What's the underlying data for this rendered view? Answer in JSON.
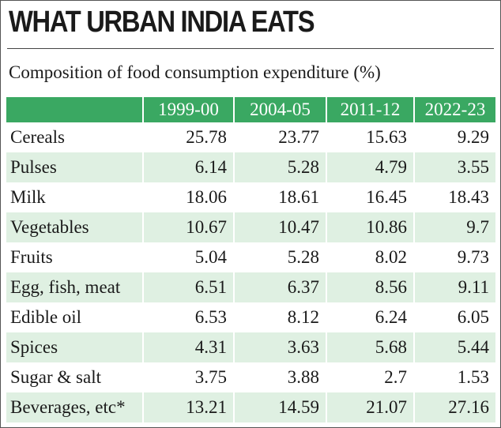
{
  "header": {
    "title": "WHAT URBAN INDIA EATS",
    "subtitle": "Composition of food consumption expenditure (%)"
  },
  "colors": {
    "header_green": "#3aa862",
    "row_shade": "#dff0e2"
  },
  "chart_data": {
    "type": "table",
    "title": "WHAT URBAN INDIA EATS",
    "subtitle": "Composition of food consumption expenditure (%)",
    "columns": [
      "1999-00",
      "2004-05",
      "2011-12",
      "2022-23"
    ],
    "rows": [
      {
        "label": "Cereals",
        "values": [
          "25.78",
          "23.77",
          "15.63",
          "9.29"
        ]
      },
      {
        "label": "Pulses",
        "values": [
          "6.14",
          "5.28",
          "4.79",
          "3.55"
        ]
      },
      {
        "label": "Milk",
        "values": [
          "18.06",
          "18.61",
          "16.45",
          "18.43"
        ]
      },
      {
        "label": "Vegetables",
        "values": [
          "10.67",
          "10.47",
          "10.86",
          "9.7"
        ]
      },
      {
        "label": "Fruits",
        "values": [
          "5.04",
          "5.28",
          "8.02",
          "9.73"
        ]
      },
      {
        "label": "Egg, fish, meat",
        "values": [
          "6.51",
          "6.37",
          "8.56",
          "9.11"
        ]
      },
      {
        "label": "Edible oil",
        "values": [
          "6.53",
          "8.12",
          "6.24",
          "6.05"
        ]
      },
      {
        "label": "Spices",
        "values": [
          "4.31",
          "3.63",
          "5.68",
          "5.44"
        ]
      },
      {
        "label": "Sugar & salt",
        "values": [
          "3.75",
          "3.88",
          "2.7",
          "1.53"
        ]
      },
      {
        "label": "Beverages, etc*",
        "values": [
          "13.21",
          "14.59",
          "21.07",
          "27.16"
        ]
      }
    ]
  }
}
